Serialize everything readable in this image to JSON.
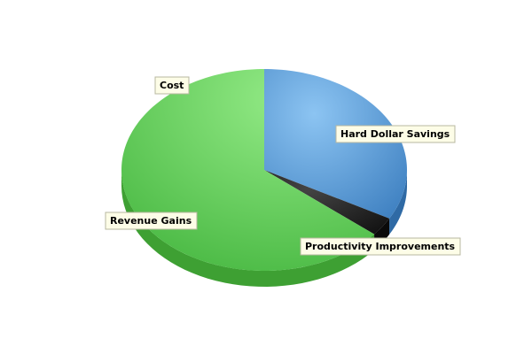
{
  "chart_data": {
    "type": "pie",
    "style": "3d",
    "categories": [
      "Hard Dollar Savings",
      "Productivity Improvements",
      "Revenue Gains",
      "Cost"
    ],
    "values": [
      33,
      3,
      64,
      0
    ],
    "colors": [
      "#5b9bd5",
      "#1a1a1a",
      "#6fd66a",
      "#7ee07a"
    ],
    "legend": "none"
  }
}
